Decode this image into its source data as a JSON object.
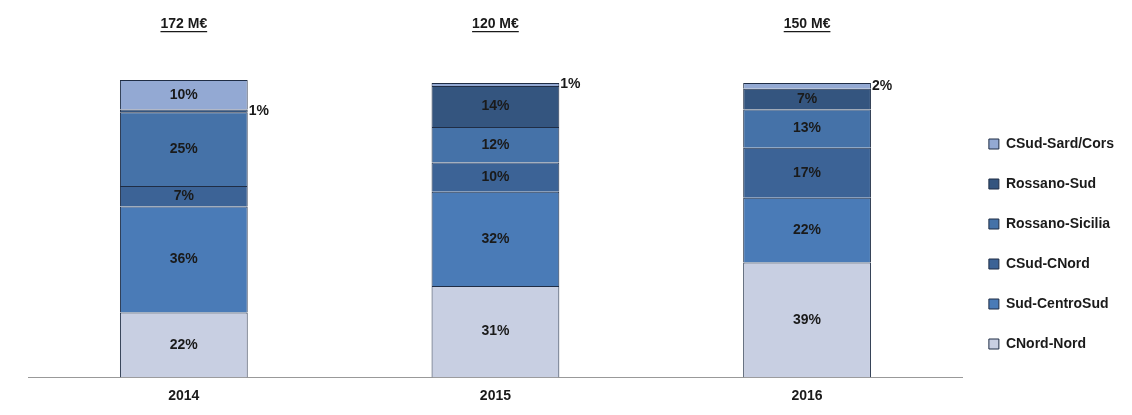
{
  "chart_data": {
    "type": "bar",
    "stacked": true,
    "categories": [
      "2014",
      "2015",
      "2016"
    ],
    "series": [
      {
        "name": "CNord-Nord",
        "color": "#c8cfe2",
        "values": [
          22,
          31,
          39
        ],
        "value_labels": [
          "22%",
          "31%",
          "39%"
        ]
      },
      {
        "name": "Sud-CentroSud",
        "color": "#4a7bb7",
        "values": [
          36,
          32,
          22
        ],
        "value_labels": [
          "36%",
          "32%",
          "22%"
        ]
      },
      {
        "name": "CSud-CNord",
        "color": "#3c6396",
        "values": [
          7,
          10,
          17
        ],
        "value_labels": [
          "7%",
          "10%",
          "17%"
        ]
      },
      {
        "name": "Rossano-Sicilia",
        "color": "#4572a8",
        "values": [
          25,
          12,
          13
        ],
        "value_labels": [
          "25%",
          "12%",
          "13%"
        ]
      },
      {
        "name": "Rossano-Sud",
        "color": "#34557f",
        "values": [
          1,
          14,
          7
        ],
        "value_labels": [
          "1%",
          "14%",
          "7%"
        ]
      },
      {
        "name": "CSud-Sard/Cors",
        "color": "#93a9d3",
        "values": [
          10,
          1,
          2
        ],
        "value_labels": [
          "10%",
          "1%",
          "2%"
        ]
      }
    ],
    "annotations": [
      "172 M€",
      "120 M€",
      "150 M€"
    ],
    "legend": "right"
  }
}
